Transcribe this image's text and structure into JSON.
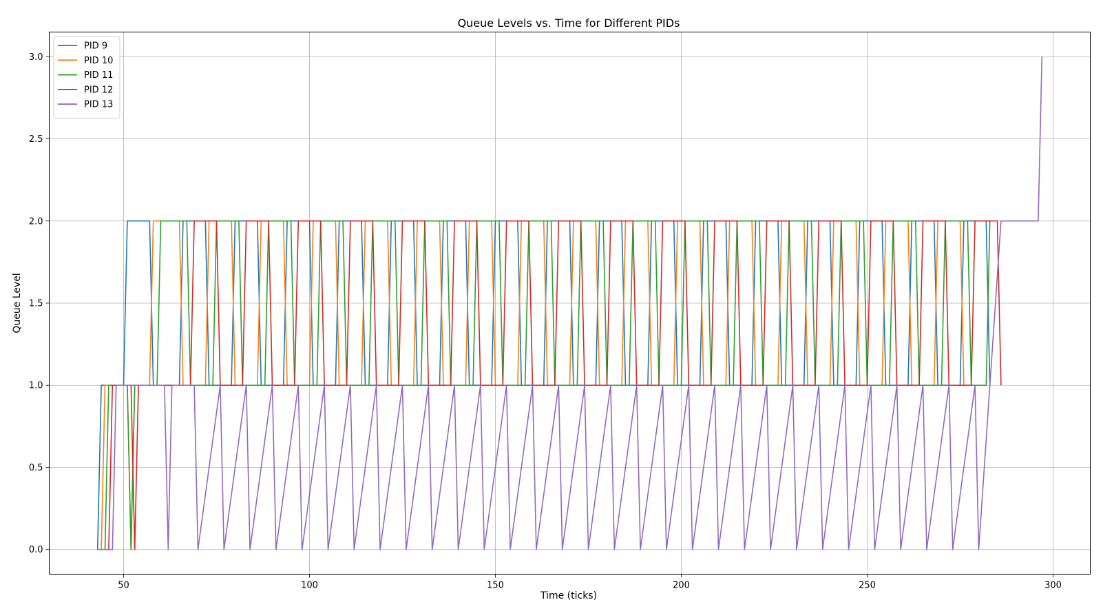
{
  "chart_data": {
    "type": "line",
    "title": "Queue Levels vs. Time for Different PIDs",
    "xlabel": "Time (ticks)",
    "ylabel": "Queue Level",
    "xlim": [
      30,
      310
    ],
    "ylim": [
      -0.15,
      3.15
    ],
    "xticks": [
      50,
      100,
      150,
      200,
      250,
      300
    ],
    "yticks": [
      0.0,
      0.5,
      1.0,
      1.5,
      2.0,
      2.5,
      3.0
    ],
    "xtick_labels": [
      "50",
      "100",
      "150",
      "200",
      "250",
      "300"
    ],
    "ytick_labels": [
      "0.0",
      "0.5",
      "1.0",
      "1.5",
      "2.0",
      "2.5",
      "3.0"
    ],
    "grid": true,
    "legend_position": "top-left",
    "series": [
      {
        "name": "PID 9",
        "color": "#1f77b4",
        "x": [
          43,
          44,
          50,
          51,
          57,
          58,
          65,
          66,
          72,
          73,
          79,
          80,
          86,
          87,
          93,
          94,
          100,
          101,
          107,
          108,
          114,
          115,
          121,
          122,
          128,
          129,
          135,
          136,
          142,
          143,
          149,
          150,
          156,
          157,
          163,
          164,
          170,
          171,
          177,
          178,
          184,
          185,
          191,
          192,
          198,
          199,
          205,
          206,
          212,
          213,
          219,
          220,
          226,
          227,
          233,
          234,
          240,
          241,
          247,
          248,
          254,
          255,
          261,
          262,
          268,
          269,
          275,
          276,
          282,
          283
        ],
        "y": [
          0,
          1,
          1,
          2,
          2,
          1,
          1,
          2,
          2,
          1,
          1,
          2,
          2,
          1,
          1,
          2,
          2,
          1,
          1,
          2,
          2,
          1,
          1,
          2,
          2,
          1,
          1,
          2,
          2,
          1,
          1,
          2,
          2,
          1,
          1,
          2,
          2,
          1,
          1,
          2,
          2,
          1,
          1,
          2,
          2,
          1,
          1,
          2,
          2,
          1,
          1,
          2,
          2,
          1,
          1,
          2,
          2,
          1,
          1,
          2,
          2,
          1,
          1,
          2,
          2,
          1,
          1,
          2,
          2,
          1
        ]
      },
      {
        "name": "PID 10",
        "color": "#ff7f0e",
        "x": [
          44,
          45,
          51,
          52,
          53,
          57,
          58,
          65,
          66,
          72,
          73,
          79,
          80,
          86,
          87,
          93,
          94,
          100,
          101,
          107,
          108,
          114,
          115,
          121,
          122,
          128,
          129,
          135,
          136,
          142,
          143,
          149,
          150,
          156,
          157,
          163,
          164,
          170,
          171,
          177,
          178,
          184,
          185,
          191,
          192,
          198,
          199,
          205,
          206,
          212,
          213,
          219,
          220,
          226,
          227,
          233,
          234,
          240,
          241,
          247,
          248,
          254,
          255,
          261,
          262,
          268,
          269,
          275,
          276,
          282
        ],
        "y": [
          0,
          1,
          1,
          0,
          1,
          1,
          2,
          2,
          1,
          1,
          2,
          2,
          1,
          1,
          2,
          2,
          1,
          1,
          2,
          2,
          1,
          1,
          2,
          2,
          1,
          1,
          2,
          2,
          1,
          1,
          2,
          2,
          1,
          1,
          2,
          2,
          1,
          1,
          2,
          2,
          1,
          1,
          2,
          2,
          1,
          1,
          2,
          2,
          1,
          1,
          2,
          2,
          1,
          1,
          2,
          2,
          1,
          1,
          2,
          2,
          1,
          1,
          2,
          2,
          1,
          1,
          2,
          2,
          1,
          1
        ]
      },
      {
        "name": "PID 11",
        "color": "#2ca02c",
        "x": [
          45,
          46,
          51,
          52,
          53,
          59,
          60,
          67,
          68,
          74,
          75,
          81,
          82,
          88,
          89,
          95,
          96,
          102,
          103,
          109,
          110,
          116,
          117,
          123,
          124,
          130,
          131,
          137,
          138,
          144,
          145,
          151,
          152,
          158,
          159,
          165,
          166,
          172,
          173,
          179,
          180,
          186,
          187,
          193,
          194,
          200,
          201,
          207,
          208,
          214,
          215,
          221,
          222,
          228,
          229,
          235,
          236,
          242,
          243,
          249,
          250,
          256,
          257,
          263,
          264,
          270,
          271,
          277,
          278,
          282,
          283
        ],
        "y": [
          0,
          1,
          1,
          0,
          1,
          1,
          2,
          2,
          1,
          1,
          2,
          2,
          1,
          1,
          2,
          2,
          1,
          1,
          2,
          2,
          1,
          1,
          2,
          2,
          1,
          1,
          2,
          2,
          1,
          1,
          2,
          2,
          1,
          1,
          2,
          2,
          1,
          1,
          2,
          2,
          1,
          1,
          2,
          2,
          1,
          1,
          2,
          2,
          1,
          1,
          2,
          2,
          1,
          1,
          2,
          2,
          1,
          1,
          2,
          2,
          1,
          1,
          2,
          2,
          1,
          1,
          2,
          2,
          1,
          1,
          2
        ]
      },
      {
        "name": "PID 12",
        "color": "#d62728",
        "x": [
          46,
          47,
          52,
          53,
          54,
          61,
          62,
          68,
          69,
          75,
          76,
          82,
          83,
          89,
          90,
          96,
          97,
          103,
          104,
          110,
          111,
          117,
          118,
          124,
          125,
          131,
          132,
          138,
          139,
          145,
          146,
          152,
          153,
          159,
          160,
          166,
          167,
          173,
          174,
          180,
          181,
          187,
          188,
          194,
          195,
          201,
          202,
          208,
          209,
          215,
          216,
          222,
          223,
          229,
          230,
          236,
          237,
          243,
          244,
          250,
          251,
          257,
          258,
          264,
          265,
          271,
          272,
          278,
          279,
          285,
          286
        ],
        "y": [
          0,
          1,
          1,
          0,
          1,
          1,
          1,
          1,
          2,
          2,
          1,
          1,
          2,
          2,
          1,
          1,
          2,
          2,
          1,
          1,
          2,
          2,
          1,
          1,
          2,
          2,
          1,
          1,
          2,
          2,
          1,
          1,
          2,
          2,
          1,
          1,
          2,
          2,
          1,
          1,
          2,
          2,
          1,
          1,
          2,
          2,
          1,
          1,
          2,
          2,
          1,
          1,
          2,
          2,
          1,
          1,
          2,
          2,
          1,
          1,
          2,
          2,
          1,
          1,
          2,
          2,
          1,
          1,
          2,
          2,
          1
        ]
      },
      {
        "name": "PID 13",
        "color": "#9467bd",
        "x": [
          43,
          47,
          48,
          54,
          55,
          61,
          62,
          63,
          69,
          70,
          76,
          77,
          83,
          84,
          90,
          91,
          97,
          98,
          104,
          105,
          111,
          112,
          118,
          119,
          125,
          126,
          132,
          133,
          139,
          140,
          146,
          147,
          153,
          154,
          160,
          161,
          167,
          168,
          174,
          175,
          181,
          182,
          188,
          189,
          195,
          196,
          202,
          203,
          209,
          210,
          216,
          217,
          223,
          224,
          230,
          231,
          237,
          238,
          244,
          245,
          251,
          252,
          258,
          259,
          265,
          266,
          272,
          273,
          279,
          280,
          286,
          296,
          297
        ],
        "y": [
          0,
          0,
          1,
          1,
          1,
          1,
          0,
          1,
          1,
          0,
          1,
          0,
          1,
          0,
          1,
          0,
          1,
          0,
          1,
          0,
          1,
          0,
          1,
          0,
          1,
          0,
          1,
          0,
          1,
          0,
          1,
          0,
          1,
          0,
          1,
          0,
          1,
          0,
          1,
          0,
          1,
          0,
          1,
          0,
          1,
          0,
          1,
          0,
          1,
          0,
          1,
          0,
          1,
          0,
          1,
          0,
          1,
          0,
          1,
          0,
          1,
          0,
          1,
          0,
          1,
          0,
          1,
          0,
          1,
          0,
          2,
          2,
          3
        ]
      }
    ]
  }
}
